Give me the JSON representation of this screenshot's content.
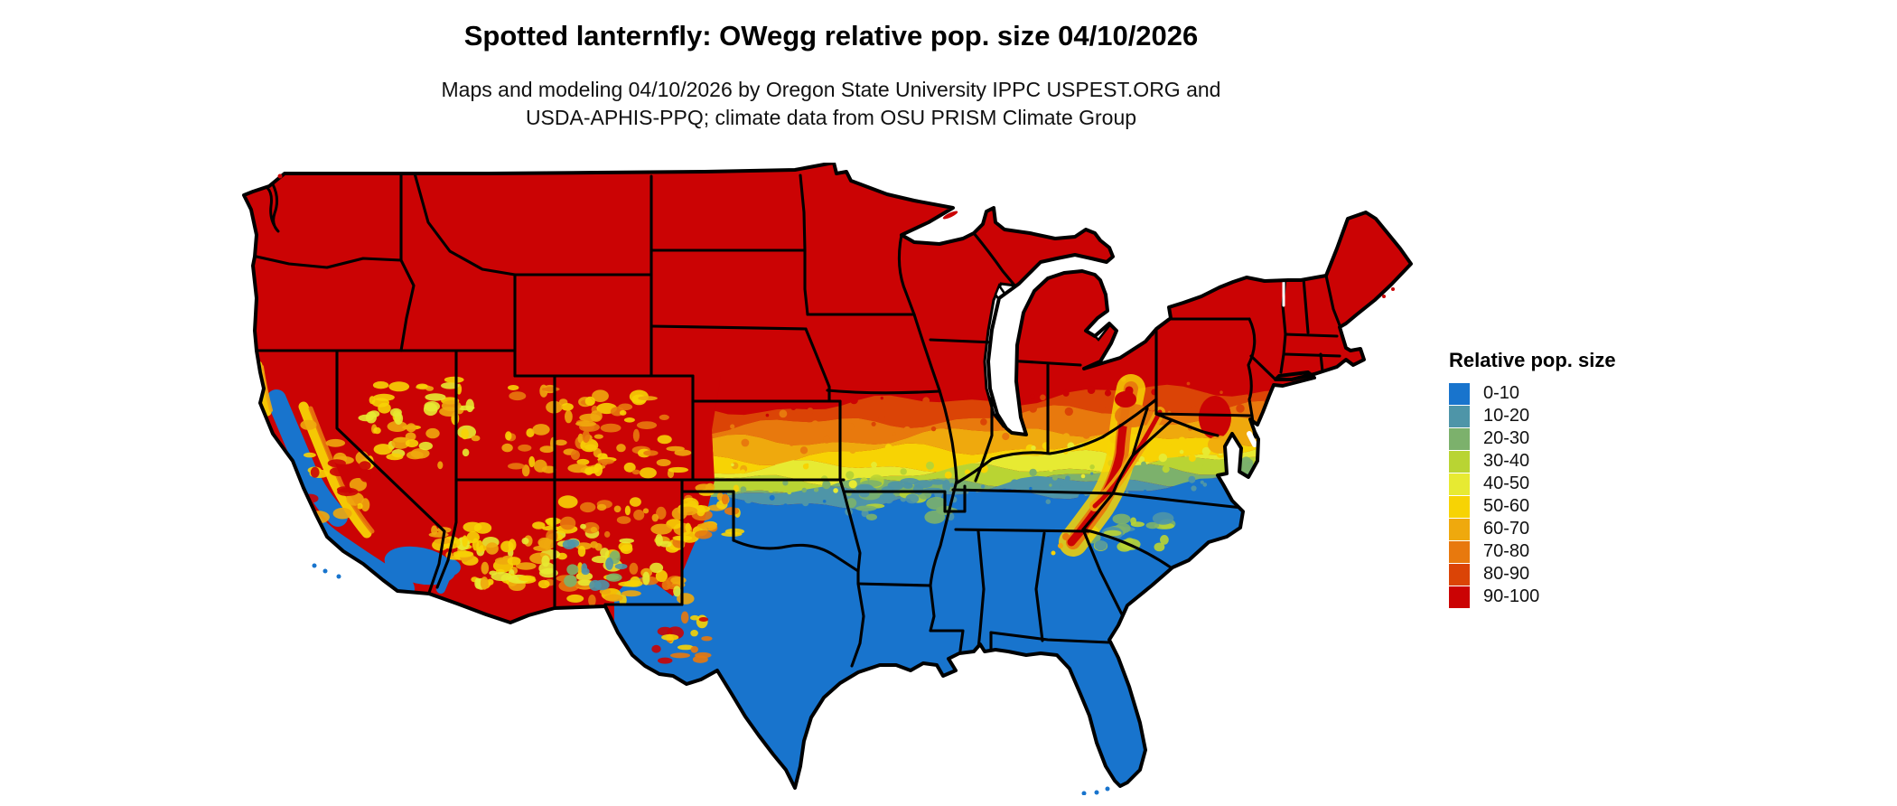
{
  "header": {
    "title": "Spotted lanternfly: OWegg relative pop. size 04/10/2026",
    "subtitle_line1": "Maps and modeling 04/10/2026 by Oregon State University IPPC USPEST.ORG and",
    "subtitle_line2": "USDA-APHIS-PPQ; climate data from OSU PRISM Climate Group"
  },
  "legend": {
    "title": "Relative pop. size",
    "items": [
      {
        "label": "0-10",
        "color": "#1874CD"
      },
      {
        "label": "10-20",
        "color": "#4E95A8"
      },
      {
        "label": "20-30",
        "color": "#7CB16C"
      },
      {
        "label": "30-40",
        "color": "#B9D433"
      },
      {
        "label": "40-50",
        "color": "#E7EA32"
      },
      {
        "label": "50-60",
        "color": "#F7D304"
      },
      {
        "label": "60-70",
        "color": "#EFA90D"
      },
      {
        "label": "70-80",
        "color": "#E8790D"
      },
      {
        "label": "80-90",
        "color": "#DB4406"
      },
      {
        "label": "90-100",
        "color": "#CB0304"
      }
    ]
  },
  "chart_data": {
    "type": "heatmap",
    "title": "Spotted lanternfly: OWegg relative pop. size 04/10/2026",
    "legend_title": "Relative pop. size",
    "classes": [
      "0-10",
      "10-20",
      "20-30",
      "30-40",
      "40-50",
      "50-60",
      "60-70",
      "70-80",
      "80-90",
      "90-100"
    ],
    "class_colors": [
      "#1874CD",
      "#4E95A8",
      "#7CB16C",
      "#B9D433",
      "#E7EA32",
      "#F7D304",
      "#EFA90D",
      "#E8790D",
      "#DB4406",
      "#CB0304"
    ],
    "spatial_pattern": "Northern US solid 90-100 (red); banded transition 80-90 through 10-20 across central plains, Ohio valley and mid-Atlantic; southern US 0-10 (blue); California valley/coast and desert Southwest 0-10; Sierra Nevada, Great Basin, Rockies and southern Appalachian ridges show high-value (orange-red) mountain patches",
    "map_background": "#ffffff",
    "boundary_color": "#000000"
  },
  "map": {
    "region": "Conterminous United States with state boundaries",
    "water_features": [
      "Great Lakes",
      "Chesapeake Bay",
      "Delaware Bay"
    ]
  }
}
